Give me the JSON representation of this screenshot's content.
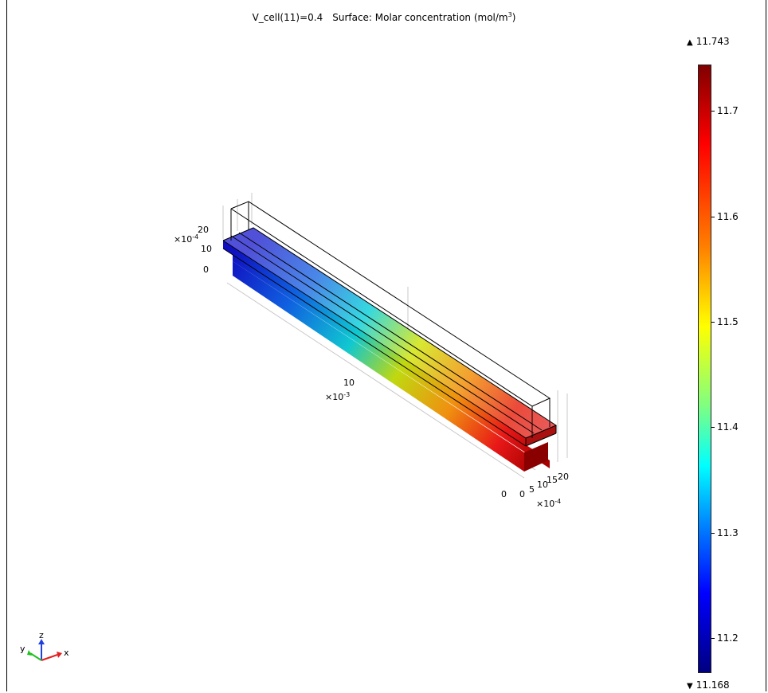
{
  "plot": {
    "title_expr": "V_cell(11)=0.4",
    "title_surface": "Surface: Molar concentration (mol/m",
    "title_sup": "3",
    "title_close": ")"
  },
  "colorbar": {
    "max_label": "11.743",
    "min_label": "11.168",
    "ticks": [
      "11.7",
      "11.6",
      "11.5",
      "11.4",
      "11.3",
      "11.2"
    ],
    "colormap": "rainbow"
  },
  "axes": {
    "z_scale": "×10",
    "z_exp": "-4",
    "z_ticks": [
      "20",
      "10",
      "0"
    ],
    "x_tick": "10",
    "x_scale": "×10",
    "x_exp": "-3",
    "x_origin": "0",
    "y_ticks": [
      "0",
      "5",
      "10",
      "15",
      "20"
    ],
    "y_scale": "×10",
    "y_exp": "-4"
  },
  "triad": {
    "x": "x",
    "y": "y",
    "z": "z"
  },
  "colors": {
    "x_axis": "#e02020",
    "y_axis": "#20c020",
    "z_axis": "#2040e0",
    "frame": "#000000"
  }
}
